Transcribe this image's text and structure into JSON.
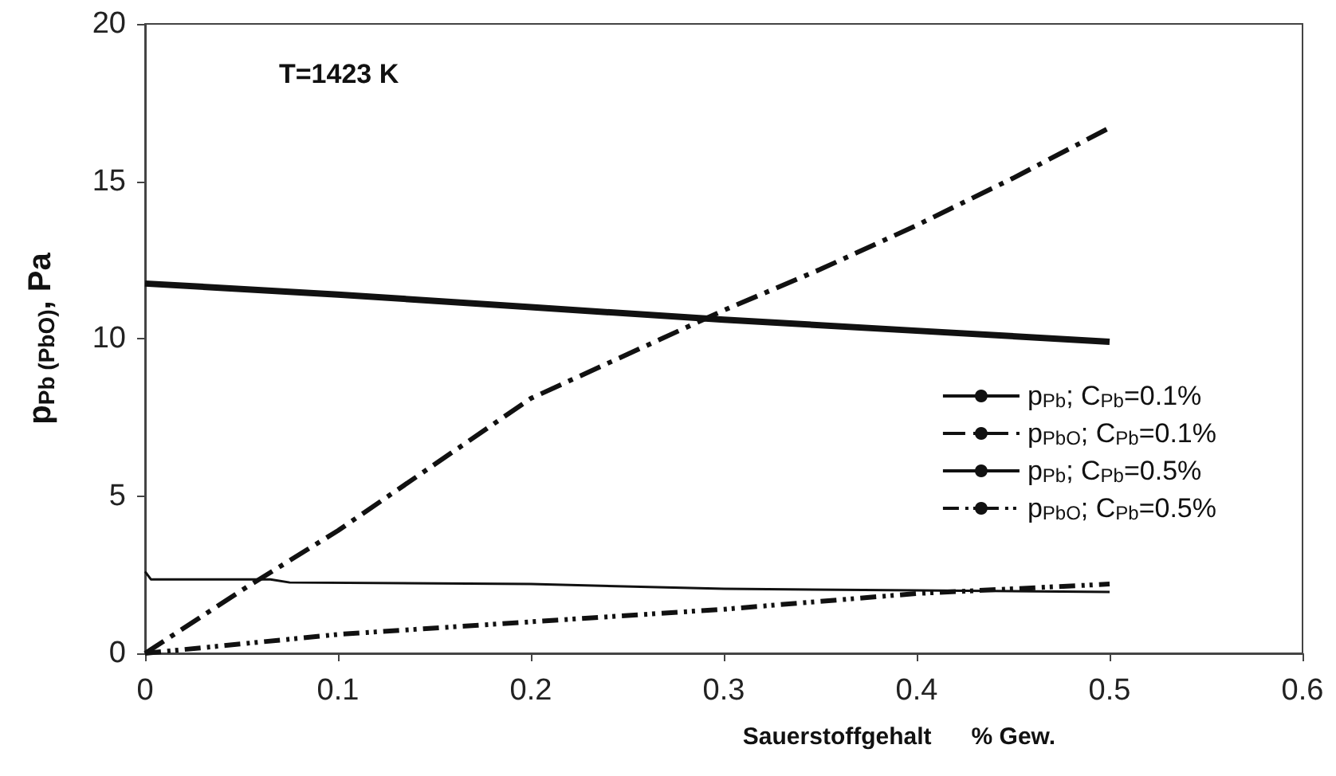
{
  "chart_data": {
    "type": "line",
    "xlabel": "Sauerstoffgehalt      % Gew.",
    "ylabel": "p$_{Pb (PbO)}$, Pa",
    "annotations": [
      "T=1423 K"
    ],
    "xlim": [
      0,
      0.6
    ],
    "xticks": [
      0,
      0.1,
      0.2,
      0.3,
      0.4,
      0.5,
      0.6
    ],
    "ylim": [
      0,
      20
    ],
    "yticks": [
      0,
      5,
      10,
      15,
      20
    ],
    "grid": false,
    "legend": "right",
    "marker": "none",
    "series": [
      {
        "name": "p$_{Pb}$; C$_{Pb}$=0.1%",
        "color": "#111111",
        "line_style": "solid",
        "x": [
          0,
          0.1,
          0.2,
          0.3,
          0.4,
          0.5
        ],
        "values": [
          11.75,
          11.4,
          11.0,
          10.6,
          10.25,
          9.9
        ]
      },
      {
        "name": "p$_{PbO}$; C$_{Pb}$=0.1%",
        "color": "#111111",
        "line_style": "dashed",
        "x": [
          0,
          0.05,
          0.1,
          0.15,
          0.2,
          0.25,
          0.3,
          0.35,
          0.4,
          0.45,
          0.5
        ],
        "values": [
          0,
          2.0,
          3.9,
          6.0,
          8.1,
          9.5,
          10.9,
          12.2,
          13.6,
          15.1,
          16.7
        ]
      },
      {
        "name": "p$_{Pb}$; C$_{Pb}$=0.5%",
        "color": "#111111",
        "line_style": "solid",
        "x": [
          0,
          0.003,
          0.065,
          0.075,
          0.2,
          0.3,
          0.4,
          0.5
        ],
        "values": [
          2.6,
          2.35,
          2.35,
          2.25,
          2.2,
          2.05,
          2.0,
          1.95
        ]
      },
      {
        "name": "p$_{PbO}$; C$_{Pb}$=0.5%",
        "color": "#111111",
        "line_style": "dotted",
        "x": [
          0,
          0.1,
          0.2,
          0.3,
          0.4,
          0.5
        ],
        "values": [
          0,
          0.6,
          1.0,
          1.4,
          1.9,
          2.2
        ]
      }
    ]
  }
}
